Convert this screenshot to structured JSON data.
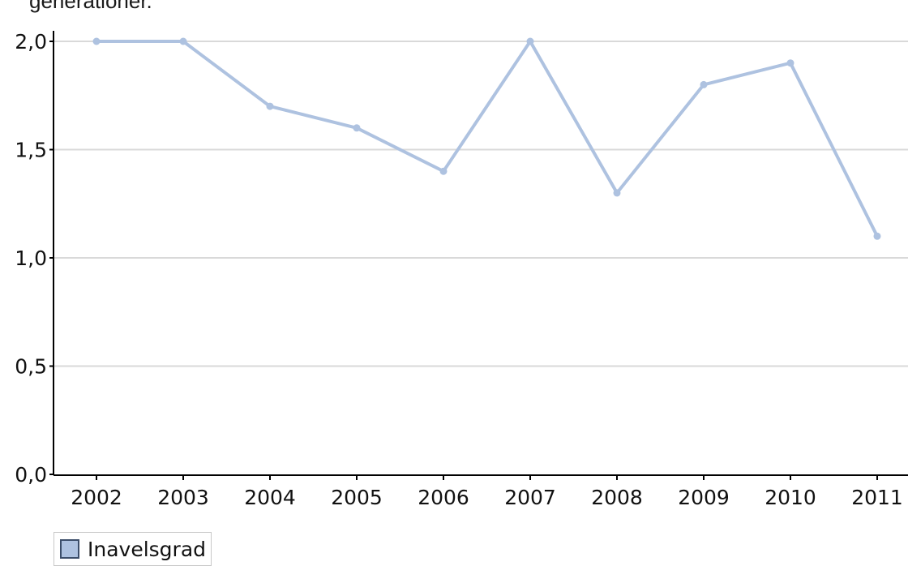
{
  "caption": "generationer.",
  "colors": {
    "series": "#aec2e0",
    "axis": "#000000",
    "grid": "#d9d9d9"
  },
  "chart_data": {
    "type": "line",
    "x": [
      "2002",
      "2003",
      "2004",
      "2005",
      "2006",
      "2007",
      "2008",
      "2009",
      "2010",
      "2011"
    ],
    "series": [
      {
        "name": "Inavelsgrad",
        "values": [
          2.0,
          2.0,
          1.7,
          1.6,
          1.4,
          2.0,
          1.3,
          1.8,
          1.9,
          1.1
        ]
      }
    ],
    "y_ticks": [
      "0,0",
      "0,5",
      "1,0",
      "1,5",
      "2,0"
    ],
    "ylim": [
      0,
      2.0
    ],
    "grid": true,
    "legend": "bottom-left"
  }
}
